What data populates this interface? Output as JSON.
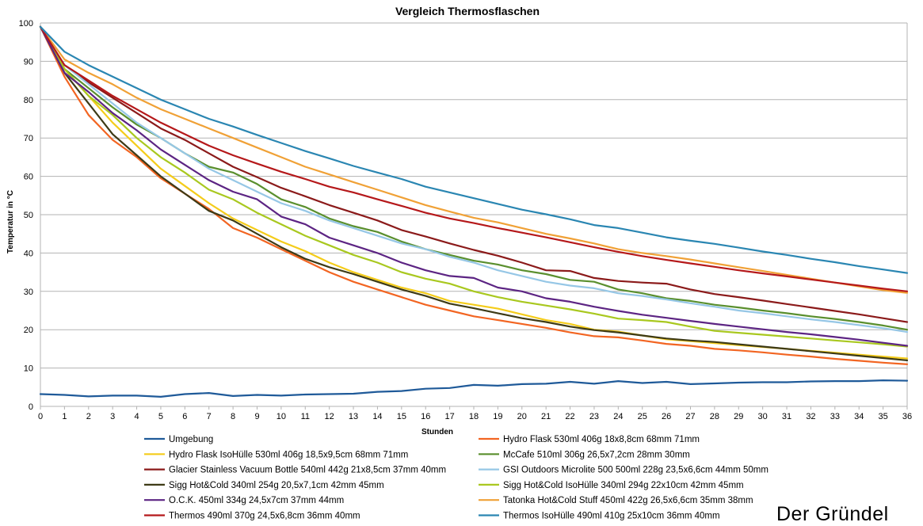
{
  "chart_data": {
    "type": "line",
    "title": "Vergleich Thermosflaschen",
    "xlabel": "Stunden",
    "ylabel": "Temperatur in °C",
    "xlim": [
      0,
      36
    ],
    "ylim": [
      0,
      100
    ],
    "x_ticks": [
      "0",
      "1",
      "2",
      "3",
      "4",
      "5",
      "6",
      "7",
      "8",
      "9",
      "10",
      "11",
      "12",
      "13",
      "14",
      "15",
      "16",
      "17",
      "18",
      "19",
      "20",
      "21",
      "22",
      "23",
      "24",
      "25",
      "26",
      "27",
      "28",
      "29",
      "30",
      "31",
      "32",
      "33",
      "34",
      "35",
      "36"
    ],
    "y_ticks": [
      "0",
      "10",
      "20",
      "30",
      "40",
      "50",
      "60",
      "70",
      "80",
      "90",
      "100"
    ],
    "grid": true,
    "legend_position": "bottom",
    "x": [
      0,
      1,
      2,
      3,
      4,
      5,
      6,
      7,
      8,
      9,
      10,
      11,
      12,
      13,
      14,
      15,
      16,
      17,
      18,
      19,
      20,
      21,
      22,
      23,
      24,
      25,
      26,
      27,
      28,
      29,
      30,
      31,
      32,
      33,
      34,
      35,
      36
    ],
    "series": [
      {
        "name": "Umgebung",
        "color": "#1f5a99",
        "values": [
          3.2,
          3,
          2.6,
          2.8,
          2.8,
          2.5,
          3.2,
          3.5,
          2.7,
          3,
          2.8,
          3.1,
          3.2,
          3.3,
          3.8,
          4,
          4.6,
          4.8,
          5.6,
          5.4,
          5.8,
          5.9,
          6.4,
          5.9,
          6.6,
          6.1,
          6.4,
          5.8,
          6,
          6.2,
          6.3,
          6.3,
          6.5,
          6.6,
          6.6,
          6.8,
          6.7
        ]
      },
      {
        "name": "Hydro Flask 530ml 406g 18x8,8cm 68mm 71mm",
        "color": "#f26522",
        "values": [
          99,
          86,
          76,
          69.5,
          65,
          59.5,
          55.5,
          51.5,
          46.5,
          44,
          41,
          38,
          35,
          32.5,
          30.5,
          28.5,
          26.5,
          25,
          23.5,
          22.5,
          21.5,
          20.5,
          19.3,
          18.3,
          18,
          17.2,
          16.3,
          15.8,
          15,
          14.6,
          14.1,
          13.5,
          13,
          12.4,
          11.9,
          11.4,
          11
        ]
      },
      {
        "name": "Hydro Flask IsoHülle 530ml 406g 18,5x9,5cm 68mm 71mm",
        "color": "#f4cc1a",
        "values": [
          99,
          88,
          81,
          74,
          68,
          62,
          57.5,
          53,
          49,
          46,
          43,
          40.5,
          37.5,
          35,
          33,
          31,
          29.5,
          27.5,
          26.5,
          25.5,
          24,
          22.5,
          21.5,
          20,
          19.5,
          18.5,
          17.5,
          17,
          16.5,
          16,
          15.5,
          15,
          14.5,
          14,
          13.5,
          13,
          12.5
        ]
      },
      {
        "name": "McCafe 510ml 306g 26,5x7,2cm 28mm 30mm",
        "color": "#5a8f2e",
        "values": [
          99,
          88,
          83,
          78,
          73.5,
          70,
          66,
          62.5,
          61,
          58,
          54,
          52,
          49,
          47,
          45.5,
          43,
          41,
          39.5,
          38,
          37,
          35.5,
          34.5,
          33,
          32.5,
          30.5,
          29.5,
          28.2,
          27.5,
          26.5,
          25.8,
          25,
          24.3,
          23.5,
          22.8,
          22,
          21.1,
          20
        ]
      },
      {
        "name": "Glacier Stainless Vacuum Bottle 540ml 442g 21x8,5cm 37mm 40mm",
        "color": "#8b1a1a",
        "values": [
          99,
          89,
          84.5,
          80.5,
          76.5,
          72.5,
          69.5,
          66,
          62.5,
          59.8,
          57,
          54.8,
          52.5,
          50.5,
          48.5,
          46,
          44.3,
          42.5,
          40.8,
          39.3,
          37.5,
          35.5,
          35.3,
          33.5,
          32.7,
          32.3,
          32,
          30.5,
          29.3,
          28.5,
          27.6,
          26.7,
          25.8,
          24.9,
          24,
          23,
          22
        ]
      },
      {
        "name": "GSI Outdoors Microlite 500 500ml 228g 23,5x6,6cm 44mm 50mm",
        "color": "#96c7e6",
        "values": [
          99,
          89,
          84,
          79,
          74,
          70,
          66,
          62,
          59,
          56,
          53,
          51,
          48.5,
          46.5,
          44.5,
          42.5,
          41,
          39,
          37.5,
          35.5,
          34,
          32.5,
          31.5,
          30.8,
          29.5,
          28.8,
          27.9,
          26.9,
          26,
          25,
          24.3,
          23.5,
          22.7,
          22,
          21.2,
          20.4,
          19.4
        ]
      },
      {
        "name": "Sigg Hot&Cold 340ml 254g 20,5x7,1cm 42mm 45mm",
        "color": "#3d3a16",
        "values": [
          99,
          87,
          79,
          71,
          65.5,
          60,
          55.5,
          51,
          48.5,
          45,
          41.5,
          38.5,
          36.3,
          34.5,
          32.5,
          30.5,
          28.8,
          26.8,
          25.6,
          24.3,
          23,
          22,
          20.8,
          19.9,
          19.3,
          18.5,
          17.7,
          17.2,
          16.8,
          16.2,
          15.6,
          15,
          14.4,
          13.8,
          13.2,
          12.6,
          12
        ]
      },
      {
        "name": "Sigg Hot&Cold IsoHülle 340ml 294g 22x10cm 42mm 45mm",
        "color": "#a9c81f",
        "values": [
          99,
          88,
          81,
          76,
          70,
          65,
          61,
          56.5,
          54,
          50.5,
          47.5,
          44.5,
          42,
          39.5,
          37.5,
          35,
          33.3,
          32,
          30,
          28.5,
          27.3,
          26.3,
          25.3,
          24.2,
          22.9,
          22.5,
          22,
          20.8,
          19.7,
          19.2,
          18.7,
          18.2,
          17.7,
          17.2,
          16.7,
          16.2,
          15.6
        ]
      },
      {
        "name": "O.C.K. 450ml 334g 24,5x7cm 37mm 44mm",
        "color": "#5c2483",
        "values": [
          99,
          87,
          82,
          76.5,
          72,
          67,
          63,
          59,
          56,
          54,
          49.5,
          47.5,
          44,
          42,
          40,
          37.5,
          35.5,
          34,
          33.5,
          31,
          30,
          28.2,
          27.3,
          26,
          24.9,
          23.9,
          23.1,
          22.3,
          21.5,
          20.8,
          20.1,
          19.4,
          18.8,
          18.1,
          17.4,
          16.6,
          15.8
        ]
      },
      {
        "name": "Tatonka Hot&Cold Stuff 450ml 422g 26,5x6,6cm 35mm 38mm",
        "color": "#f0a136",
        "values": [
          99,
          90.5,
          87,
          84,
          80.5,
          77.5,
          75,
          72.5,
          70,
          67.5,
          65,
          62.5,
          60.5,
          58.5,
          56.5,
          54.5,
          52.5,
          50.8,
          49.2,
          48,
          46.5,
          45,
          43.8,
          42.5,
          41,
          40,
          39.2,
          38.3,
          37.3,
          36.3,
          35.3,
          34.3,
          33.3,
          32.3,
          31.3,
          30.3,
          29.6
        ]
      },
      {
        "name": "Thermos 490ml 370g 24,5x6,8cm 36mm 40mm",
        "color": "#b5181a",
        "values": [
          99,
          89,
          85,
          81,
          77.5,
          74,
          71,
          68,
          65.5,
          63.3,
          61.2,
          59.3,
          57.3,
          55.8,
          54,
          52.3,
          50.5,
          49,
          47.8,
          46.5,
          45.3,
          44.1,
          42.8,
          41.5,
          40.3,
          39.2,
          38.2,
          37.3,
          36.4,
          35.5,
          34.7,
          33.9,
          33.1,
          32.3,
          31.5,
          30.7,
          30
        ]
      },
      {
        "name": "Thermos IsoHülle 490ml 410g 25x10cm 36mm 40mm",
        "color": "#2a86b2",
        "values": [
          99,
          92.5,
          89,
          86,
          83,
          80,
          77.5,
          75,
          73,
          70.8,
          68.7,
          66.6,
          64.7,
          62.7,
          61,
          59.3,
          57.3,
          55.8,
          54.3,
          52.8,
          51.3,
          50.1,
          48.8,
          47.3,
          46.5,
          45.3,
          44.1,
          43.2,
          42.4,
          41.4,
          40.4,
          39.5,
          38.5,
          37.6,
          36.6,
          35.7,
          34.8
        ]
      }
    ]
  },
  "watermark": {
    "text": "Der Gründel"
  }
}
